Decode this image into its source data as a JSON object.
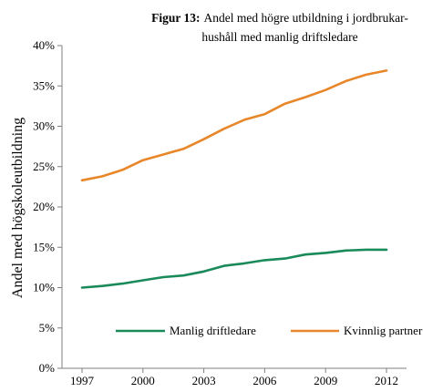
{
  "chart_data": {
    "type": "line",
    "title_prefix": "Figur 13:",
    "title_line1": "Andel med högre utbildning i jordbrukar-",
    "title_line2": "hushåll med manlig driftsledare",
    "xlabel": "",
    "ylabel": "Andel med högskoleutbildning",
    "x": [
      1997,
      1998,
      1999,
      2000,
      2001,
      2002,
      2003,
      2004,
      2005,
      2006,
      2007,
      2008,
      2009,
      2010,
      2011,
      2012
    ],
    "xticks": [
      1997,
      2000,
      2003,
      2006,
      2009,
      2012
    ],
    "xtick_labels": [
      "1997",
      "2000",
      "2003",
      "2006",
      "2009",
      "2012"
    ],
    "ylim": [
      0,
      40
    ],
    "yticks": [
      0,
      5,
      10,
      15,
      20,
      25,
      30,
      35,
      40
    ],
    "ytick_labels": [
      "0%",
      "5%",
      "10%",
      "15%",
      "20%",
      "25%",
      "30%",
      "35%",
      "40%"
    ],
    "grid": false,
    "legend_position": "bottom",
    "series": [
      {
        "name": "Manlig driftledare",
        "color": "#1a8a5a",
        "values": [
          10.0,
          10.2,
          10.5,
          10.9,
          11.3,
          11.5,
          12.0,
          12.7,
          13.0,
          13.4,
          13.6,
          14.1,
          14.3,
          14.6,
          14.7,
          14.7
        ]
      },
      {
        "name": "Kvinnlig partner",
        "color": "#e8862a",
        "values": [
          23.3,
          23.8,
          24.6,
          25.8,
          26.5,
          27.2,
          28.4,
          29.7,
          30.8,
          31.5,
          32.8,
          33.6,
          34.5,
          35.6,
          36.4,
          36.9
        ]
      }
    ]
  }
}
